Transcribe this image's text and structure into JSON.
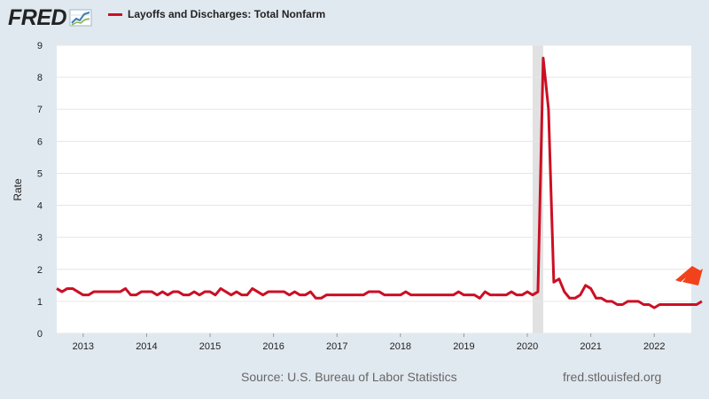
{
  "brand": {
    "logo_text": "FRED"
  },
  "legend": {
    "label": "Layoffs and Discharges: Total Nonfarm",
    "color": "#cc0f24"
  },
  "footer": {
    "source": "Source: U.S. Bureau of Labor Statistics",
    "credit": "fred.stlouisfed.org"
  },
  "arrow": {
    "icon": "arrow-up-right-icon",
    "color": "#f2421b"
  },
  "chart_data": {
    "type": "line",
    "title": "",
    "xlabel": "",
    "ylabel": "Rate",
    "ylim": [
      0,
      9
    ],
    "yticks": [
      "0",
      "1",
      "2",
      "3",
      "4",
      "5",
      "6",
      "7",
      "8",
      "9"
    ],
    "xlim": [
      "2012-08",
      "2022-08"
    ],
    "xticks": [
      "2013",
      "2014",
      "2015",
      "2016",
      "2017",
      "2018",
      "2019",
      "2020",
      "2021",
      "2022"
    ],
    "grid": true,
    "recession_shading": {
      "start": "2020-02",
      "end": "2020-04"
    },
    "series": [
      {
        "name": "Layoffs and Discharges: Total Nonfarm",
        "color": "#cc0f24",
        "start": "2012-08",
        "frequency": "monthly",
        "values": [
          1.4,
          1.3,
          1.4,
          1.4,
          1.3,
          1.2,
          1.2,
          1.3,
          1.3,
          1.3,
          1.3,
          1.3,
          1.3,
          1.4,
          1.2,
          1.2,
          1.3,
          1.3,
          1.3,
          1.2,
          1.3,
          1.2,
          1.3,
          1.3,
          1.2,
          1.2,
          1.3,
          1.2,
          1.3,
          1.3,
          1.2,
          1.4,
          1.3,
          1.2,
          1.3,
          1.2,
          1.2,
          1.4,
          1.3,
          1.2,
          1.3,
          1.3,
          1.3,
          1.3,
          1.2,
          1.3,
          1.2,
          1.2,
          1.3,
          1.1,
          1.1,
          1.2,
          1.2,
          1.2,
          1.2,
          1.2,
          1.2,
          1.2,
          1.2,
          1.3,
          1.3,
          1.3,
          1.2,
          1.2,
          1.2,
          1.2,
          1.3,
          1.2,
          1.2,
          1.2,
          1.2,
          1.2,
          1.2,
          1.2,
          1.2,
          1.2,
          1.3,
          1.2,
          1.2,
          1.2,
          1.1,
          1.3,
          1.2,
          1.2,
          1.2,
          1.2,
          1.3,
          1.2,
          1.2,
          1.3,
          1.2,
          1.3,
          8.6,
          7.0,
          1.6,
          1.7,
          1.3,
          1.1,
          1.1,
          1.2,
          1.5,
          1.4,
          1.1,
          1.1,
          1.0,
          1.0,
          0.9,
          0.9,
          1.0,
          1.0,
          1.0,
          0.9,
          0.9,
          0.8,
          0.9,
          0.9,
          0.9,
          0.9,
          0.9,
          0.9,
          0.9,
          0.9,
          1.0
        ]
      }
    ]
  }
}
